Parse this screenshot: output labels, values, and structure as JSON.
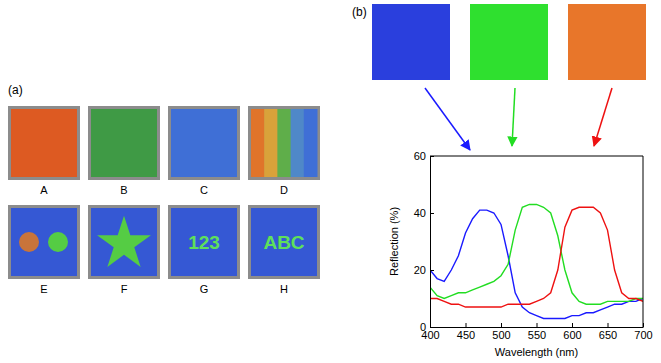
{
  "chart_data": {
    "type": "line",
    "x_label": "Wavelength (nm)",
    "y_label": "Reflection (%)",
    "x": [
      400,
      410,
      420,
      430,
      440,
      450,
      460,
      470,
      480,
      490,
      500,
      510,
      520,
      530,
      540,
      550,
      560,
      570,
      580,
      590,
      600,
      610,
      620,
      630,
      640,
      650,
      660,
      670,
      680,
      690,
      700
    ],
    "series": [
      {
        "color": "#1a1aff",
        "values": [
          20,
          17,
          16,
          20,
          25,
          33,
          38,
          41,
          41,
          40,
          36,
          25,
          12,
          7,
          5,
          4,
          3,
          3,
          3,
          3,
          4,
          4,
          5,
          5,
          6,
          7,
          8,
          8,
          9,
          9,
          10
        ]
      },
      {
        "color": "#22dd22",
        "values": [
          14,
          11,
          10,
          11,
          12,
          12,
          13,
          14,
          15,
          16,
          18,
          22,
          34,
          42,
          43,
          43,
          42,
          40,
          32,
          20,
          12,
          9,
          8,
          8,
          8,
          9,
          9,
          9,
          9,
          10,
          10
        ]
      },
      {
        "color": "#ee1111",
        "values": [
          10,
          10,
          9,
          8,
          8,
          7,
          7,
          7,
          7,
          7,
          7,
          8,
          8,
          8,
          8,
          9,
          10,
          12,
          20,
          35,
          41,
          42,
          42,
          42,
          40,
          34,
          20,
          12,
          10,
          10,
          9
        ]
      }
    ],
    "xlim": [
      400,
      700
    ],
    "xticks": [
      400,
      450,
      500,
      550,
      600,
      650,
      700
    ],
    "ylim": [
      0,
      60
    ],
    "yticks": [
      0,
      20,
      40,
      60
    ],
    "grid": false
  },
  "figure": {
    "panel_labels": [
      "(a)",
      "(b)"
    ],
    "samples": [
      {
        "label": "A"
      },
      {
        "label": "B"
      },
      {
        "label": "C"
      },
      {
        "label": "D"
      },
      {
        "label": "E"
      },
      {
        "label": "F"
      },
      {
        "label": "G",
        "text": "123"
      },
      {
        "label": "H",
        "text": "ABC"
      }
    ]
  }
}
